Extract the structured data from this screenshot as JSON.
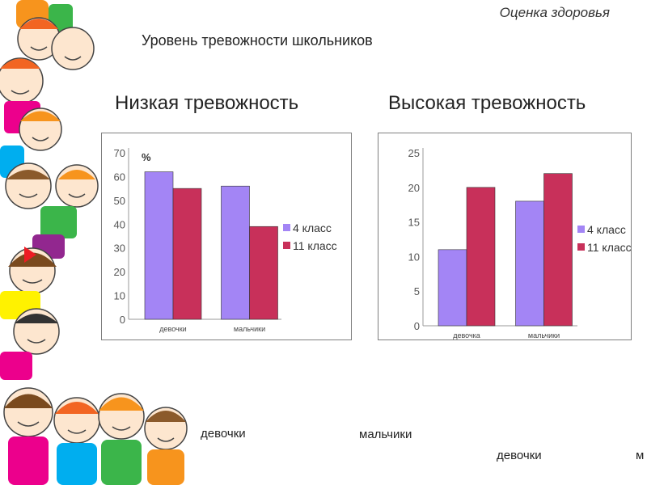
{
  "header": {
    "section_title": "Оценка здоровья",
    "slide_title": "Уровень тревожности школьников",
    "low_heading": "Низкая тревожность",
    "high_heading": "Высокая тревожность"
  },
  "bottom_labels": {
    "girls_1": "девочки",
    "boys_1": "мальчики",
    "girls_2": "девочки",
    "boys_2": "м"
  },
  "colors": {
    "grade4": "#a385f5",
    "grade11": "#c8305a",
    "border": "#7f7f7f",
    "axis": "#9a9a9a"
  },
  "chart_data": [
    {
      "type": "bar",
      "title": "Низкая тревожность",
      "unit_label": "%",
      "categories": [
        "девочки",
        "мальчики"
      ],
      "series": [
        {
          "name": "4 класс",
          "values": [
            62,
            56
          ]
        },
        {
          "name": "11 класс",
          "values": [
            55,
            39
          ]
        }
      ],
      "ylim": [
        0,
        70
      ],
      "yticks": [
        0,
        10,
        20,
        30,
        40,
        50,
        60,
        70
      ],
      "legend": "right"
    },
    {
      "type": "bar",
      "title": "Высокая тревожность",
      "unit_label": "",
      "categories": [
        "девочка",
        "мальчики"
      ],
      "series": [
        {
          "name": "4 класс",
          "values": [
            11,
            18
          ]
        },
        {
          "name": "11 класс",
          "values": [
            20,
            22
          ]
        }
      ],
      "ylim": [
        0,
        25
      ],
      "yticks": [
        0,
        5,
        10,
        15,
        20,
        25
      ],
      "legend": "right"
    }
  ]
}
